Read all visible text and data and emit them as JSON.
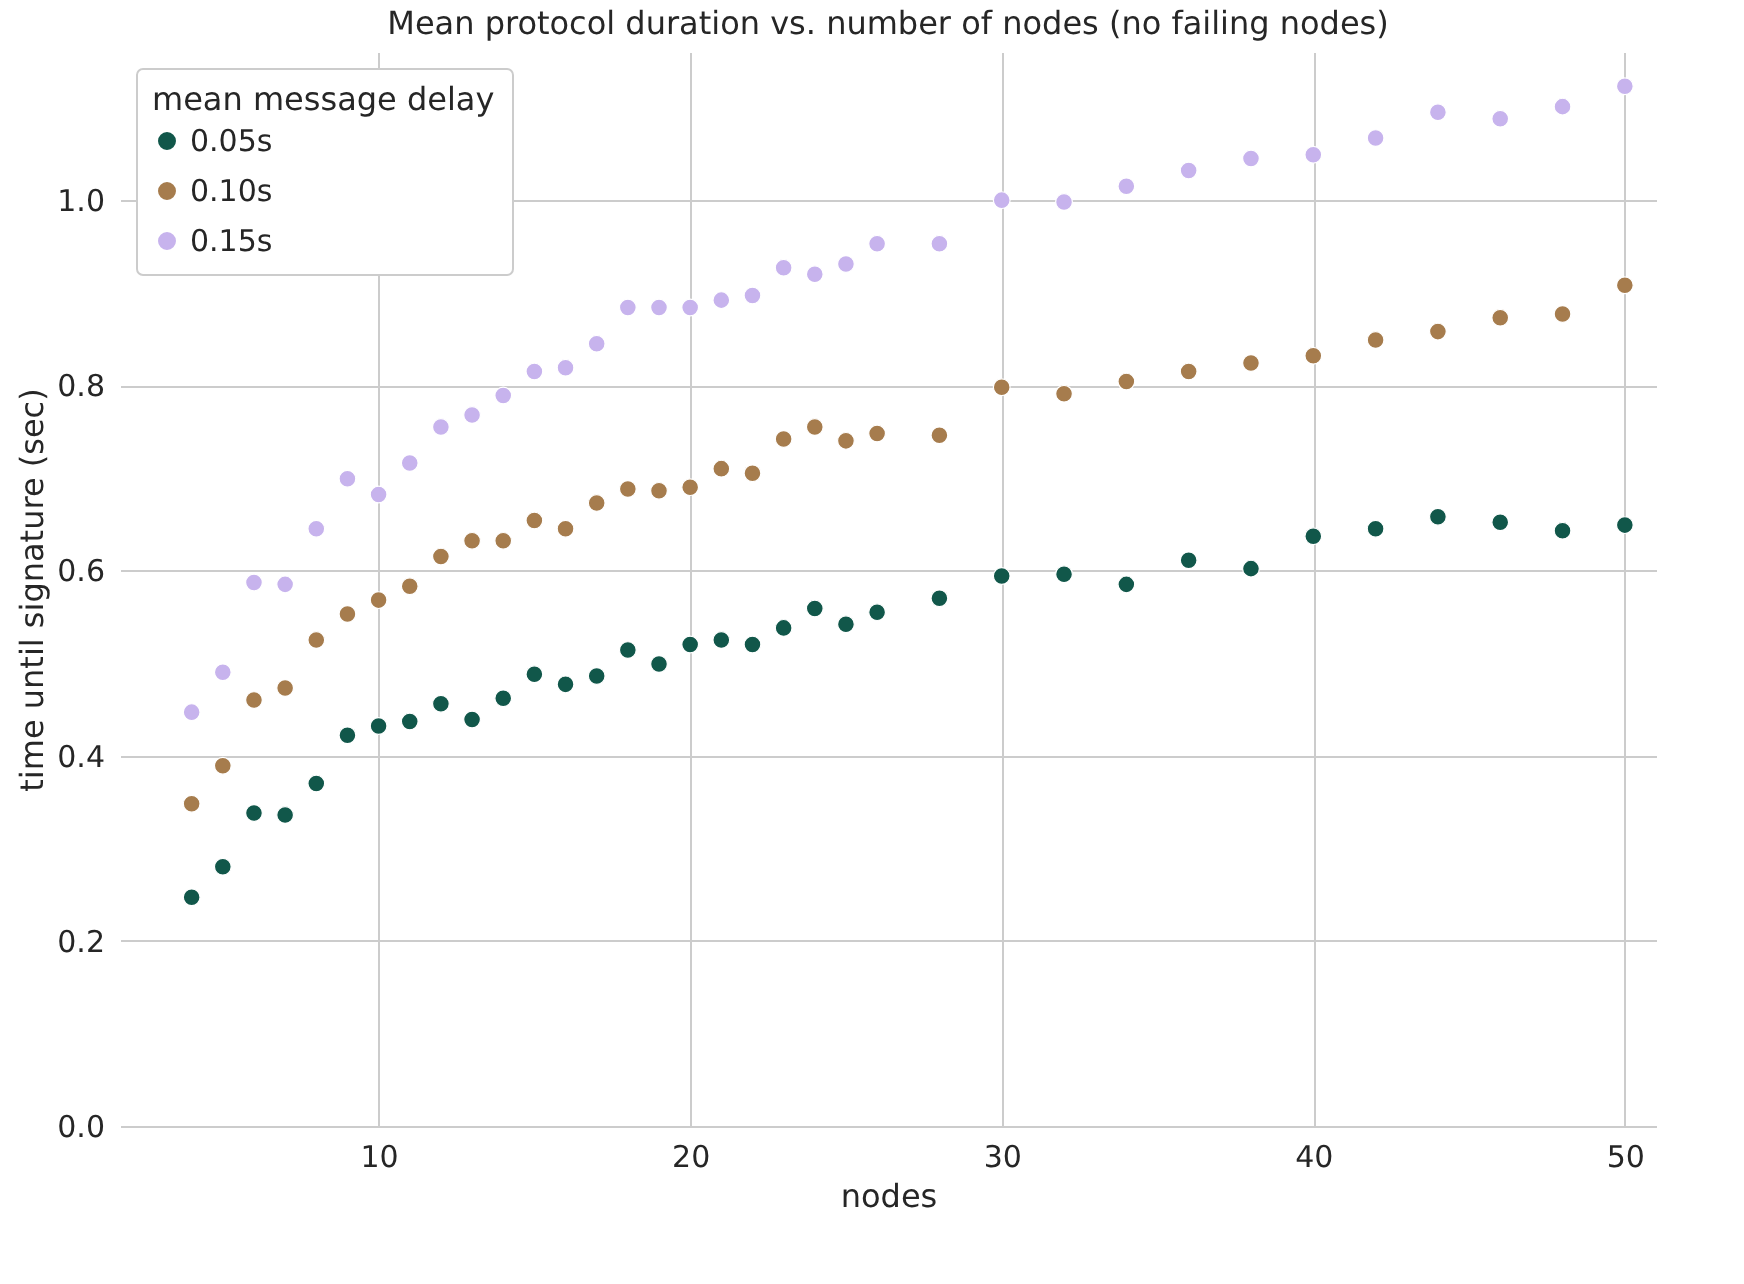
{
  "chart_data": {
    "type": "scatter",
    "title": "Mean protocol duration vs. number of nodes (no failing nodes)",
    "xlabel": "nodes",
    "ylabel": "time until signature (sec)",
    "legend_title": "mean message delay",
    "x": [
      4,
      5,
      6,
      7,
      8,
      9,
      10,
      11,
      12,
      13,
      14,
      15,
      16,
      17,
      18,
      19,
      20,
      21,
      22,
      23,
      24,
      25,
      26,
      28,
      30,
      32,
      34,
      36,
      38,
      40,
      42,
      44,
      46,
      48,
      50
    ],
    "series": [
      {
        "name": "0.05s",
        "color": "#11574a",
        "values": [
          0.247,
          0.28,
          0.338,
          0.336,
          0.37,
          0.422,
          0.432,
          0.437,
          0.456,
          0.439,
          0.462,
          0.488,
          0.477,
          0.486,
          0.514,
          0.499,
          0.52,
          0.525,
          0.52,
          0.538,
          0.559,
          0.542,
          0.555,
          0.57,
          0.594,
          0.596,
          0.585,
          0.611,
          0.602,
          0.637,
          0.645,
          0.658,
          0.652,
          0.643,
          0.649
        ]
      },
      {
        "name": "0.10s",
        "color": "#a67c4d",
        "values": [
          0.348,
          0.389,
          0.46,
          0.473,
          0.525,
          0.553,
          0.568,
          0.583,
          0.615,
          0.632,
          0.632,
          0.654,
          0.645,
          0.673,
          0.688,
          0.686,
          0.69,
          0.71,
          0.705,
          0.742,
          0.755,
          0.74,
          0.748,
          0.746,
          0.798,
          0.791,
          0.804,
          0.815,
          0.824,
          0.832,
          0.849,
          0.858,
          0.873,
          0.877,
          0.908
        ]
      },
      {
        "name": "0.15s",
        "color": "#c7b3ed",
        "values": [
          0.447,
          0.49,
          0.587,
          0.585,
          0.645,
          0.699,
          0.682,
          0.716,
          0.755,
          0.768,
          0.789,
          0.815,
          0.819,
          0.845,
          0.884,
          0.884,
          0.884,
          0.892,
          0.897,
          0.927,
          0.92,
          0.931,
          0.953,
          0.953,
          1.0,
          0.998,
          1.015,
          1.032,
          1.045,
          1.049,
          1.067,
          1.095,
          1.088,
          1.101,
          1.123
        ]
      }
    ],
    "xlim": [
      1.7,
      51
    ],
    "xticks": [
      10,
      20,
      30,
      40,
      50
    ],
    "ylim": [
      0,
      1.16
    ],
    "yticks": [
      {
        "value": 0,
        "label": "0.0"
      },
      {
        "value": 0.2,
        "label": "0.2"
      },
      {
        "value": 0.4,
        "label": "0.4"
      },
      {
        "value": 0.6,
        "label": "0.6"
      },
      {
        "value": 0.8,
        "label": "0.8"
      },
      {
        "value": 1.0,
        "label": "1.0"
      }
    ],
    "grid": true,
    "legend": "top left",
    "marker": "circle"
  }
}
